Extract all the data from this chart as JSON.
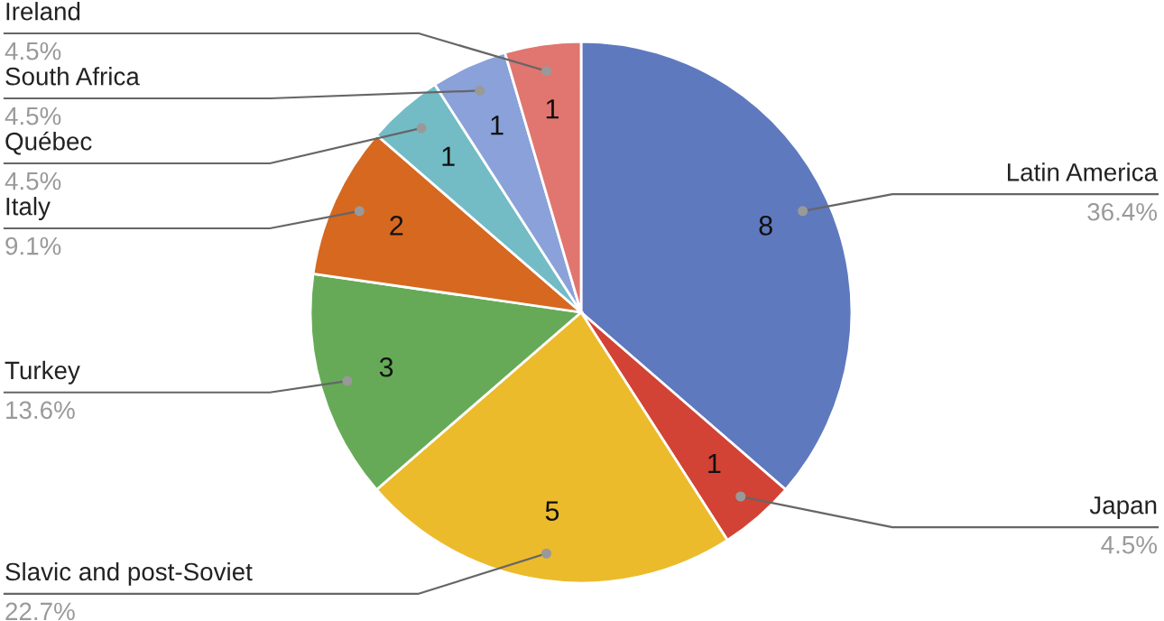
{
  "chart_data": {
    "type": "pie",
    "categories": [
      "Latin America",
      "Japan",
      "Slavic and post-Soviet",
      "Turkey",
      "Italy",
      "Québec",
      "South Africa",
      "Ireland"
    ],
    "values": [
      8,
      1,
      5,
      3,
      2,
      1,
      1,
      1
    ],
    "colors": [
      "#5f79bf",
      "#d24335",
      "#ecbb2c",
      "#66aa58",
      "#d66820",
      "#73bcc5",
      "#8aa1d9",
      "#e0766f"
    ],
    "value_labels": [
      "8",
      "1",
      "5",
      "3",
      "2",
      "1",
      "1",
      "1"
    ],
    "annotations": [
      "36.4%",
      "4.5%",
      "22.7%",
      "13.6%",
      "9.1%",
      "4.5%",
      "4.5%",
      "4.5%"
    ],
    "legend": false
  }
}
